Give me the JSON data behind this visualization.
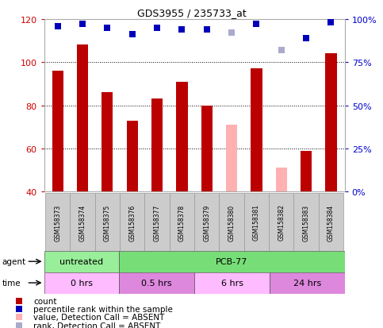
{
  "title": "GDS3955 / 235733_at",
  "samples": [
    "GSM158373",
    "GSM158374",
    "GSM158375",
    "GSM158376",
    "GSM158377",
    "GSM158378",
    "GSM158379",
    "GSM158380",
    "GSM158381",
    "GSM158382",
    "GSM158383",
    "GSM158384"
  ],
  "count_values": [
    96,
    108,
    86,
    73,
    83,
    91,
    80,
    71,
    97,
    51,
    59,
    104
  ],
  "count_absent": [
    false,
    false,
    false,
    false,
    false,
    false,
    false,
    true,
    false,
    true,
    false,
    false
  ],
  "rank_values": [
    96,
    97,
    95,
    91,
    95,
    94,
    94,
    92,
    97,
    82,
    89,
    98
  ],
  "rank_absent": [
    false,
    false,
    false,
    false,
    false,
    false,
    false,
    true,
    false,
    true,
    false,
    false
  ],
  "ylim_left": [
    40,
    120
  ],
  "ylim_right": [
    0,
    100
  ],
  "yticks_left": [
    40,
    60,
    80,
    100,
    120
  ],
  "ytick_labels_left": [
    "40",
    "60",
    "80",
    "100",
    "120"
  ],
  "yticks_right": [
    0,
    25,
    50,
    75,
    100
  ],
  "ytick_labels_right": [
    "0%",
    "25%",
    "50%",
    "75%",
    "100%"
  ],
  "bar_color": "#bb0000",
  "bar_absent_color": "#ffb0b0",
  "rank_color": "#0000bb",
  "rank_absent_color": "#aaaacc",
  "grid_color": "#000000",
  "plot_border_color": "#aaaaaa",
  "sample_box_color": "#cccccc",
  "agent_groups": [
    {
      "label": "untreated",
      "start": 0,
      "end": 3,
      "color": "#99ee99"
    },
    {
      "label": "PCB-77",
      "start": 3,
      "end": 12,
      "color": "#77dd77"
    }
  ],
  "time_groups": [
    {
      "label": "0 hrs",
      "start": 0,
      "end": 3,
      "color": "#ffbbff"
    },
    {
      "label": "0.5 hrs",
      "start": 3,
      "end": 6,
      "color": "#dd88dd"
    },
    {
      "label": "6 hrs",
      "start": 6,
      "end": 9,
      "color": "#ffbbff"
    },
    {
      "label": "24 hrs",
      "start": 9,
      "end": 12,
      "color": "#dd88dd"
    }
  ],
  "legend_items": [
    {
      "label": "count",
      "color": "#bb0000"
    },
    {
      "label": "percentile rank within the sample",
      "color": "#0000bb"
    },
    {
      "label": "value, Detection Call = ABSENT",
      "color": "#ffb0b0"
    },
    {
      "label": "rank, Detection Call = ABSENT",
      "color": "#aaaacc"
    }
  ],
  "bar_width": 0.45,
  "rank_marker_size": 6,
  "left_label_color": "#cc0000",
  "right_label_color": "#0000cc"
}
